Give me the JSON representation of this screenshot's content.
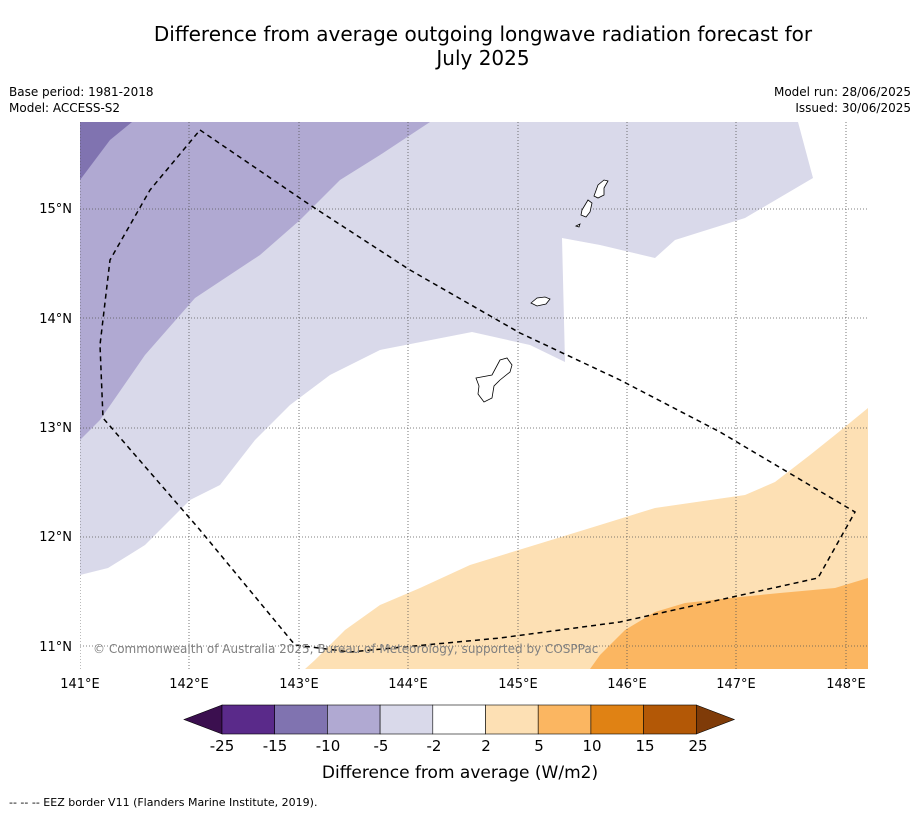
{
  "title_line1": "Difference from average outgoing longwave radiation forecast for",
  "title_line2": "July 2025",
  "meta_left": {
    "base_period": "Base period: 1981-2018",
    "model": "Model: ACCESS-S2"
  },
  "meta_right": {
    "model_run": "Model run: 28/06/2025",
    "issued": "Issued: 30/06/2025"
  },
  "lon_labels": [
    "141°E",
    "142°E",
    "143°E",
    "144°E",
    "145°E",
    "146°E",
    "147°E",
    "148°E"
  ],
  "lat_labels": [
    "15°N",
    "14°N",
    "13°N",
    "12°N",
    "11°N"
  ],
  "copyright": "© Commonwealth of Australia 2025, Bureau of Meteorology, supported by COSPPac",
  "colorbar": {
    "ticks": [
      "-25",
      "-15",
      "-10",
      "-5",
      "-2",
      "2",
      "5",
      "10",
      "15",
      "25"
    ],
    "title": "Difference from average (W/m2)",
    "colors": [
      "#3b0f4f",
      "#5a2a8a",
      "#8073b0",
      "#b0a9d2",
      "#d9d9ea",
      "#ffffff",
      "#fde0b4",
      "#fbb661",
      "#e08214",
      "#b35806",
      "#7f3b08"
    ]
  },
  "footnote": "--  --  -- EEZ border V11 (Flanders Marine Institute, 2019).",
  "icons": [
    "guam-island-outline",
    "rota-island-outline",
    "tinian-saipan-outline"
  ]
}
